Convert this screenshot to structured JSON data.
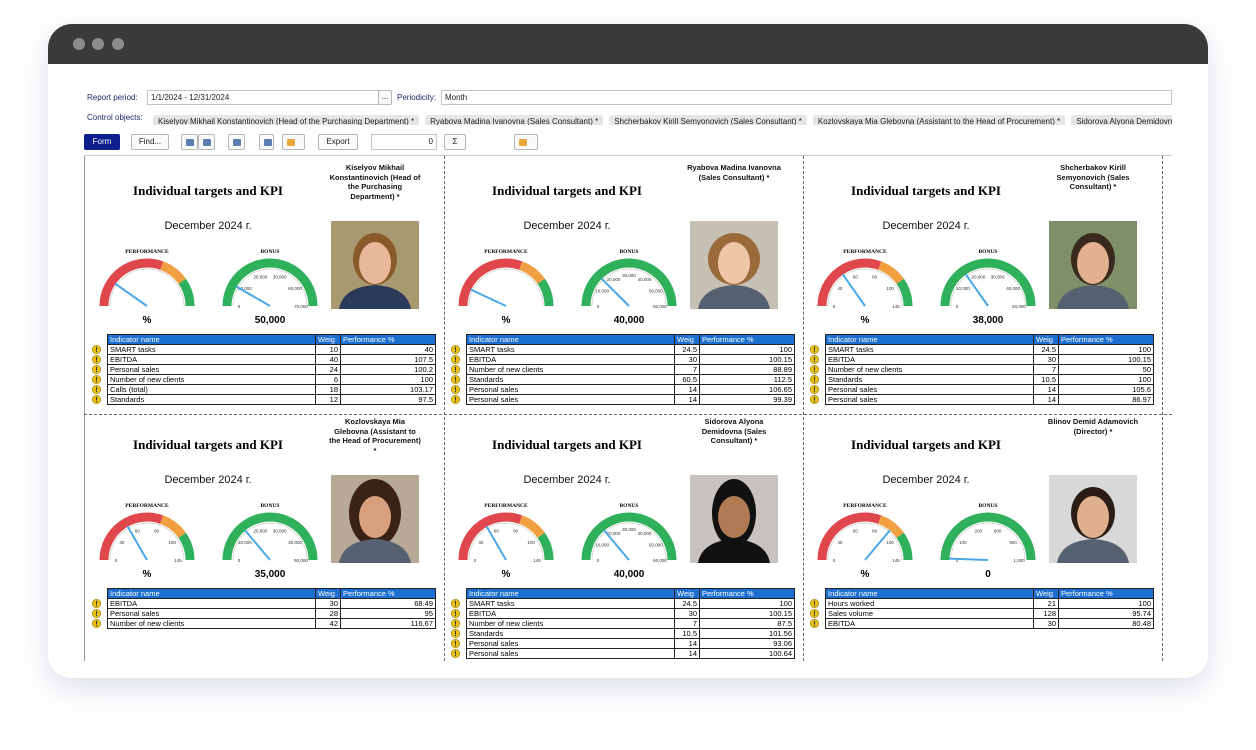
{
  "filters": {
    "report_period_label": "Report period:",
    "report_period": "1/1/2024 - 12/31/2024",
    "ellipsis": "...",
    "periodicity_label": "Periodicity:",
    "periodicity": "Month",
    "control_objects_label": "Control objects:",
    "control_objects": [
      "Kiselyov Mikhail Konstantinovich (Head of the Purchasing Department) *",
      "Ryabova Madina Ivanovna (Sales Consultant) *",
      "Shcherbakov Kirill Semyonovich (Sales Consultant) *",
      "Kozlovskaya Mia Glebovna (Assistant to the Head of Procurement) *",
      "Sidorova Alyona Demidovna"
    ]
  },
  "toolbar": {
    "form": "Form",
    "find": "Find...",
    "export": "Export",
    "counter": "0",
    "sum": "Σ"
  },
  "report": {
    "card_title": "Individual targets and KPI",
    "period": "December 2024 г.",
    "performance_label": "PERFORMANCE",
    "bonus_label": "BONUS",
    "performance_unit": "%",
    "table_header": [
      "Indicator name",
      "Weig",
      "Performance %"
    ],
    "cards": [
      {
        "employee": "Kiselyov Mikhail Konstantinovich (Head of the Purchasing Department) *",
        "bonus": "50,000",
        "bonus_scale": [
          "0",
          "10,000",
          "20,000",
          "30,000",
          "60,000",
          "70,000"
        ],
        "indicators": [
          [
            "SMART tasks",
            10,
            40
          ],
          [
            "EBITDA",
            40,
            107.5
          ],
          [
            "Personal sales",
            24,
            100.2
          ],
          [
            "Number of new clients",
            6,
            100
          ],
          [
            "Calls (total)",
            18,
            103.17
          ],
          [
            "Standards",
            12,
            97.5
          ]
        ]
      },
      {
        "employee": "Ryabova Madina Ivanovna (Sales Consultant) *",
        "bonus": "40,000",
        "bonus_scale": [
          "0",
          "10,000",
          "20,000",
          "30,000",
          "40,000",
          "50,000",
          "60,000"
        ],
        "indicators": [
          [
            "SMART tasks",
            24.5,
            100
          ],
          [
            "EBITDA",
            30,
            100.15
          ],
          [
            "Number of new clients",
            7,
            88.89
          ],
          [
            "Standards",
            60.5,
            112.5
          ],
          [
            "Personal sales",
            14,
            106.65
          ],
          [
            "Personal sales",
            14,
            99.39
          ]
        ]
      },
      {
        "employee": "Shcherbakov Kirill Semyonovich (Sales Consultant) *",
        "bonus": "38,000",
        "performance_scale": [
          "0",
          "40",
          "60",
          "80",
          "100",
          "145"
        ],
        "bonus_scale": [
          "0",
          "10,000",
          "20,000",
          "30,000",
          "40,000",
          "50,000"
        ],
        "indicators": [
          [
            "SMART tasks",
            24.5,
            100
          ],
          [
            "EBITDA",
            30,
            100.15
          ],
          [
            "Number of new clients",
            7,
            50
          ],
          [
            "Standards",
            10.5,
            100
          ],
          [
            "Personal sales",
            14,
            105.6
          ],
          [
            "Personal sales",
            14,
            86.97
          ]
        ]
      },
      {
        "employee": "Kozlovskaya Mia Glebovna (Assistant to the Head of Procurement) *",
        "bonus": "35,000",
        "performance_scale": [
          "0",
          "40",
          "60",
          "80",
          "100",
          "145"
        ],
        "bonus_scale": [
          "0",
          "10,000",
          "20,000",
          "30,000",
          "40,000",
          "50,000"
        ],
        "indicators": [
          [
            "EBITDA",
            30,
            68.49
          ],
          [
            "Personal sales",
            28,
            95
          ],
          [
            "Number of new clients",
            42,
            116.67
          ]
        ]
      },
      {
        "employee": "Sidorova Alyona Demidovna (Sales Consultant) *",
        "bonus": "40,000",
        "performance_scale": [
          "0",
          "40",
          "60",
          "80",
          "100",
          "145"
        ],
        "bonus_scale": [
          "0",
          "10,000",
          "20,000",
          "30,000",
          "40,000",
          "50,000",
          "60,000"
        ],
        "indicators": [
          [
            "SMART tasks",
            24.5,
            100
          ],
          [
            "EBITDA",
            30,
            100.15
          ],
          [
            "Number of new clients",
            7,
            87.5
          ],
          [
            "Standards",
            10.5,
            101.56
          ],
          [
            "Personal sales",
            14,
            93.06
          ],
          [
            "Personal sales",
            14,
            100.64
          ]
        ]
      },
      {
        "employee": "Blinov Demid Adamovich (Director) *",
        "bonus": "0",
        "performance_scale": [
          "0",
          "40",
          "60",
          "80",
          "100",
          "145"
        ],
        "bonus_scale": [
          "0",
          "100",
          "200",
          "800",
          "900",
          "1,000"
        ],
        "indicators": [
          [
            "Hours worked",
            21,
            100
          ],
          [
            "Sales volume",
            128,
            95.74
          ],
          [
            "EBITDA",
            30,
            80.48
          ]
        ]
      }
    ]
  }
}
